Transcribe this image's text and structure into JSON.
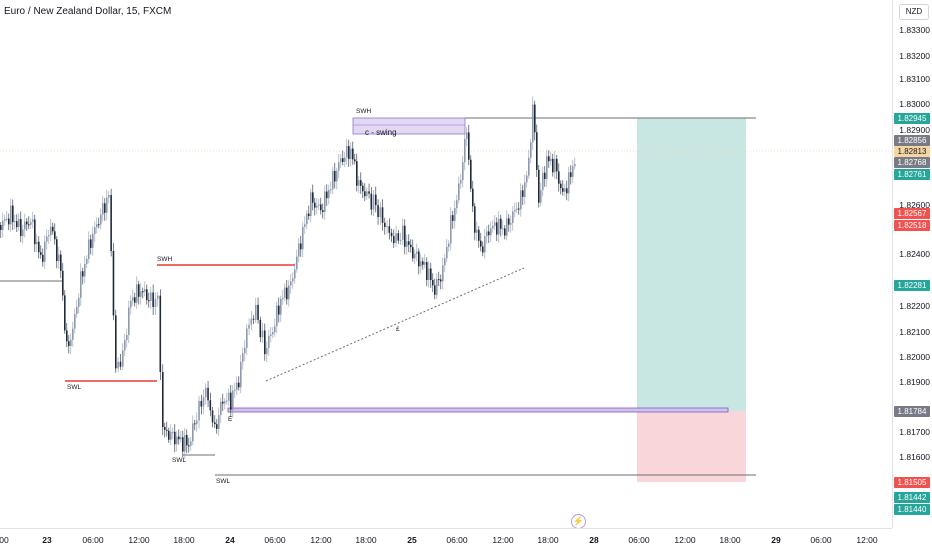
{
  "chart_title": "Euro / New Zealand Dollar, 15, FXCM",
  "currency": "NZD",
  "price_axis_labels": [
    "1.83300",
    "1.83200",
    "1.83100",
    "1.83000",
    "1.82900",
    "1.82600",
    "1.82400",
    "1.82200",
    "1.82100",
    "1.82000",
    "1.81900",
    "1.81700",
    "1.81600"
  ],
  "price_tags": [
    {
      "text": "1.82945",
      "color": "#26a69a"
    },
    {
      "text": "1.82856",
      "color": "#787b86"
    },
    {
      "text": "1.82813",
      "color": "#f5d5a0"
    },
    {
      "text": "1.82768",
      "color": "#787b86"
    },
    {
      "text": "1.82761",
      "color": "#26a69a"
    },
    {
      "text": "1.82567",
      "color": "#ef5350"
    },
    {
      "text": "1.82518",
      "color": "#ef5350"
    },
    {
      "text": "1.82281",
      "color": "#26a69a"
    },
    {
      "text": "1.81784",
      "color": "#787b86"
    },
    {
      "text": "1.81505",
      "color": "#ef5350"
    },
    {
      "text": "1.81442",
      "color": "#26a69a"
    },
    {
      "text": "1.81440",
      "color": "#26a69a"
    }
  ],
  "time_labels": [
    "00",
    "23",
    "06:00",
    "12:00",
    "18:00",
    "24",
    "06:00",
    "12:00",
    "18:00",
    "25",
    "06:00",
    "12:00",
    "18:00",
    "28",
    "06:00",
    "12:00",
    "18:00",
    "29",
    "06:00",
    "12:00"
  ],
  "annotations": {
    "swh_1": "SWH",
    "swh_2": "SWH",
    "swl_1": "SWL",
    "swl_2": "SWL",
    "swl_3": "SWL",
    "c_swing": "c - swing",
    "e_label": "E",
    "line_label": "£"
  },
  "icons": {
    "flash": "lightning-icon"
  },
  "colors": {
    "target_zone": "#c8e6e0",
    "stop_zone": "#f8d3d6",
    "bull": "#8d99ae",
    "bear": "#1e2a3a",
    "swh_line": "#e53935",
    "entry_line": "#7e57c2"
  }
}
